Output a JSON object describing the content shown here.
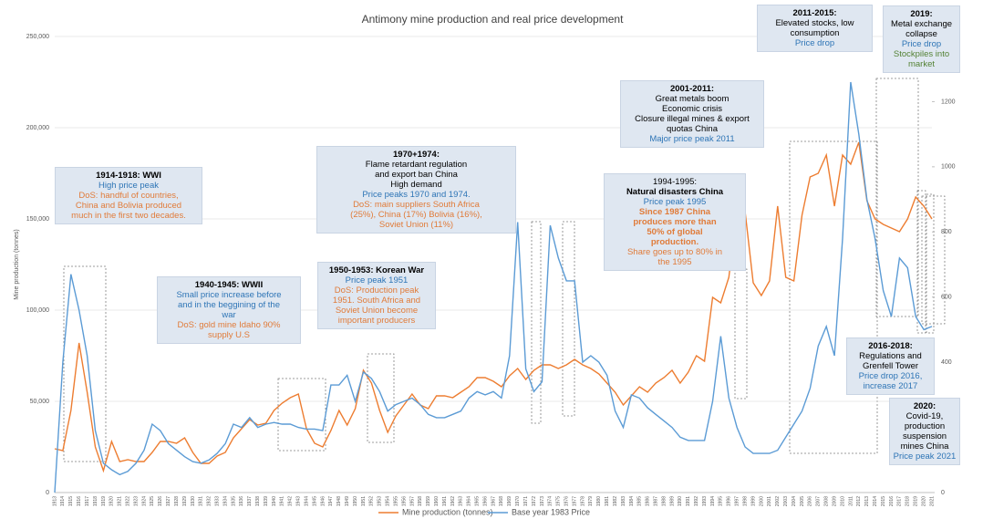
{
  "chart_data": {
    "type": "line",
    "title": "Antimony mine production and real price development",
    "ylabel": "Mine production (tonnes)",
    "x": [
      1913,
      1914,
      1915,
      1916,
      1917,
      1918,
      1919,
      1920,
      1921,
      1922,
      1923,
      1924,
      1925,
      1926,
      1927,
      1928,
      1929,
      1930,
      1931,
      1932,
      1933,
      1934,
      1935,
      1936,
      1937,
      1938,
      1939,
      1940,
      1941,
      1942,
      1943,
      1944,
      1945,
      1946,
      1947,
      1948,
      1949,
      1950,
      1951,
      1952,
      1953,
      1954,
      1955,
      1956,
      1957,
      1958,
      1959,
      1960,
      1961,
      1962,
      1963,
      1964,
      1965,
      1966,
      1967,
      1968,
      1969,
      1970,
      1971,
      1972,
      1973,
      1974,
      1975,
      1976,
      1977,
      1978,
      1979,
      1980,
      1981,
      1982,
      1983,
      1984,
      1985,
      1986,
      1987,
      1988,
      1989,
      1990,
      1991,
      1992,
      1993,
      1994,
      1995,
      1996,
      1997,
      1998,
      1999,
      2000,
      2001,
      2002,
      2003,
      2004,
      2005,
      2006,
      2007,
      2008,
      2009,
      2010,
      2011,
      2012,
      2013,
      2014,
      2015,
      2016,
      2017,
      2018,
      2019,
      2020,
      2021
    ],
    "xlim": [
      1913,
      2021
    ],
    "ylim": [
      0,
      250000
    ],
    "yticks": [
      {
        "value": 0,
        "label": "0"
      },
      {
        "value": 50000,
        "label": "50,000"
      },
      {
        "value": 100000,
        "label": "100,000"
      },
      {
        "value": 150000,
        "label": "150,000"
      },
      {
        "value": 200000,
        "label": "200,000"
      },
      {
        "value": 250000,
        "label": "250,000"
      }
    ],
    "y2lim": [
      0,
      1400
    ],
    "y2ticks": [
      0,
      200,
      400,
      600,
      800,
      1000,
      1200,
      1400
    ],
    "grid": true,
    "legend": "bottom",
    "series": [
      {
        "name": "Mine production (tonnes)",
        "color": "#ed7d31",
        "axis": "y",
        "values": [
          24000,
          23000,
          45000,
          82000,
          55000,
          25000,
          12000,
          28000,
          17000,
          18000,
          17000,
          17000,
          22000,
          28000,
          28000,
          27000,
          30000,
          22000,
          16000,
          16000,
          20000,
          22000,
          30000,
          35000,
          40000,
          37000,
          38000,
          45000,
          49000,
          52000,
          54000,
          35000,
          27000,
          25000,
          34000,
          45000,
          37000,
          46000,
          67000,
          60000,
          45000,
          33000,
          42000,
          48000,
          54000,
          48000,
          46000,
          53000,
          53000,
          52000,
          55000,
          58000,
          63000,
          63000,
          61000,
          58000,
          64000,
          68000,
          62000,
          67000,
          70000,
          70000,
          68000,
          70000,
          73000,
          70000,
          68000,
          65000,
          60000,
          55000,
          48000,
          53000,
          58000,
          55000,
          60000,
          63000,
          67000,
          60000,
          66000,
          75000,
          72000,
          107000,
          104000,
          118000,
          155000,
          154000,
          115000,
          108000,
          116000,
          157000,
          118000,
          116000,
          152000,
          173000,
          175000,
          185000,
          157000,
          185000,
          180000,
          192000,
          160000,
          150000,
          147000,
          145000,
          143000,
          150000,
          162000,
          157000,
          150000
        ]
      },
      {
        "name": "Base year 1983 Price",
        "color": "#5b9bd5",
        "axis": "y2",
        "values": [
          0,
          400,
          670,
          560,
          420,
          190,
          90,
          70,
          55,
          65,
          90,
          130,
          210,
          190,
          150,
          130,
          110,
          95,
          90,
          100,
          120,
          150,
          210,
          200,
          230,
          200,
          210,
          215,
          210,
          210,
          200,
          195,
          195,
          190,
          330,
          330,
          360,
          280,
          370,
          350,
          310,
          250,
          270,
          280,
          290,
          270,
          240,
          230,
          230,
          240,
          250,
          290,
          310,
          300,
          310,
          290,
          420,
          830,
          380,
          310,
          340,
          820,
          720,
          650,
          650,
          400,
          420,
          400,
          360,
          250,
          200,
          300,
          290,
          260,
          240,
          220,
          200,
          170,
          160,
          160,
          160,
          280,
          480,
          290,
          200,
          140,
          120,
          120,
          120,
          130,
          170,
          210,
          250,
          320,
          450,
          510,
          420,
          780,
          1260,
          1100,
          900,
          780,
          620,
          540,
          720,
          690,
          540,
          500,
          510
        ]
      }
    ],
    "annotations": [
      {
        "lines": [
          {
            "text": "1914-1918: WWI",
            "color": "#000000",
            "bold": true
          },
          {
            "text": "High price peak",
            "color": "#2e75b6",
            "bold": false
          },
          {
            "text": "DoS: handful of countries,",
            "color": "#e07b39",
            "bold": false
          },
          {
            "text": "China and Bolivia produced",
            "color": "#e07b39",
            "bold": false
          },
          {
            "text": "much in the first two decades.",
            "color": "#e07b39",
            "bold": false
          }
        ]
      },
      {
        "lines": [
          {
            "text": "1940-1945: WWII",
            "color": "#000000",
            "bold": true
          },
          {
            "text": "Small price increase before",
            "color": "#2e75b6",
            "bold": false
          },
          {
            "text": "and in the beggining of the",
            "color": "#2e75b6",
            "bold": false
          },
          {
            "text": "war",
            "color": "#2e75b6",
            "bold": false
          },
          {
            "text": "DoS: gold mine Idaho 90%",
            "color": "#e07b39",
            "bold": false
          },
          {
            "text": "supply U.S",
            "color": "#e07b39",
            "bold": false
          }
        ]
      },
      {
        "lines": [
          {
            "text": "1950-1953: Korean War",
            "color": "#000000",
            "bold": true
          },
          {
            "text": "Price peak 1951",
            "color": "#2e75b6",
            "bold": false
          },
          {
            "text": "DoS: Production peak",
            "color": "#e07b39",
            "bold": false
          },
          {
            "text": "1951. South Africa and",
            "color": "#e07b39",
            "bold": false
          },
          {
            "text": "Soviet Union become",
            "color": "#e07b39",
            "bold": false
          },
          {
            "text": "important producers",
            "color": "#e07b39",
            "bold": false
          }
        ]
      },
      {
        "lines": [
          {
            "text": "1970+1974:",
            "color": "#000000",
            "bold": true
          },
          {
            "text": "Flame retardant regulation",
            "color": "#000000",
            "bold": false
          },
          {
            "text": "and export ban China",
            "color": "#000000",
            "bold": false
          },
          {
            "text": "High demand",
            "color": "#000000",
            "bold": false
          },
          {
            "text": "Price peaks 1970 and 1974.",
            "color": "#2e75b6",
            "bold": false
          },
          {
            "text": "DoS: main suppliers South Africa",
            "color": "#e07b39",
            "bold": false
          },
          {
            "text": "(25%), China (17%) Bolivia (16%),",
            "color": "#e07b39",
            "bold": false
          },
          {
            "text": "Soviet Union (11%)",
            "color": "#e07b39",
            "bold": false
          }
        ]
      },
      {
        "lines": [
          {
            "text": "1994-1995:",
            "color": "#000000",
            "bold": false
          },
          {
            "text": "Natural disasters China",
            "color": "#000000",
            "bold": true
          },
          {
            "text": "Price peak 1995",
            "color": "#2e75b6",
            "bold": false
          },
          {
            "text": "Since 1987 China",
            "color": "#e07b39",
            "bold": true
          },
          {
            "text": "produces more than",
            "color": "#e07b39",
            "bold": true
          },
          {
            "text": "50% of global",
            "color": "#e07b39",
            "bold": true
          },
          {
            "text": "production.",
            "color": "#e07b39",
            "bold": true
          },
          {
            "text": "Share goes up to 80% in",
            "color": "#e07b39",
            "bold": false
          },
          {
            "text": "the 1995",
            "color": "#e07b39",
            "bold": false
          }
        ]
      },
      {
        "lines": [
          {
            "text": "2001-2011:",
            "color": "#000000",
            "bold": true
          },
          {
            "text": "Great metals boom",
            "color": "#000000",
            "bold": false
          },
          {
            "text": "Economic crisis",
            "color": "#000000",
            "bold": false
          },
          {
            "text": "Closure illegal mines & export",
            "color": "#000000",
            "bold": false
          },
          {
            "text": "quotas China",
            "color": "#000000",
            "bold": false
          },
          {
            "text": "Major price peak 2011",
            "color": "#2e75b6",
            "bold": false
          }
        ]
      },
      {
        "lines": [
          {
            "text": "2011-2015:",
            "color": "#000000",
            "bold": true
          },
          {
            "text": "Elevated stocks, low",
            "color": "#000000",
            "bold": false
          },
          {
            "text": "consumption",
            "color": "#000000",
            "bold": false
          },
          {
            "text": "Price drop",
            "color": "#2e75b6",
            "bold": false
          }
        ]
      },
      {
        "lines": [
          {
            "text": "2019:",
            "color": "#000000",
            "bold": true
          },
          {
            "text": "Metal exchange",
            "color": "#000000",
            "bold": false
          },
          {
            "text": "collapse",
            "color": "#000000",
            "bold": false
          },
          {
            "text": "Price drop",
            "color": "#2e75b6",
            "bold": false
          },
          {
            "text": "Stockpiles into",
            "color": "#548235",
            "bold": false
          },
          {
            "text": "market",
            "color": "#548235",
            "bold": false
          }
        ]
      },
      {
        "lines": [
          {
            "text": "2016-2018:",
            "color": "#000000",
            "bold": true
          },
          {
            "text": "Regulations and",
            "color": "#000000",
            "bold": false
          },
          {
            "text": "Grenfell Tower",
            "color": "#000000",
            "bold": false
          },
          {
            "text": "Price drop 2016,",
            "color": "#2e75b6",
            "bold": false
          },
          {
            "text": "increase 2017",
            "color": "#2e75b6",
            "bold": false
          }
        ]
      },
      {
        "lines": [
          {
            "text": "2020:",
            "color": "#000000",
            "bold": true
          },
          {
            "text": "Covid-19,",
            "color": "#000000",
            "bold": false
          },
          {
            "text": "production",
            "color": "#000000",
            "bold": false
          },
          {
            "text": "suspension",
            "color": "#000000",
            "bold": false
          },
          {
            "text": "mines China",
            "color": "#000000",
            "bold": false
          },
          {
            "text": "Price peak 2021",
            "color": "#2e75b6",
            "bold": false
          }
        ]
      }
    ]
  }
}
